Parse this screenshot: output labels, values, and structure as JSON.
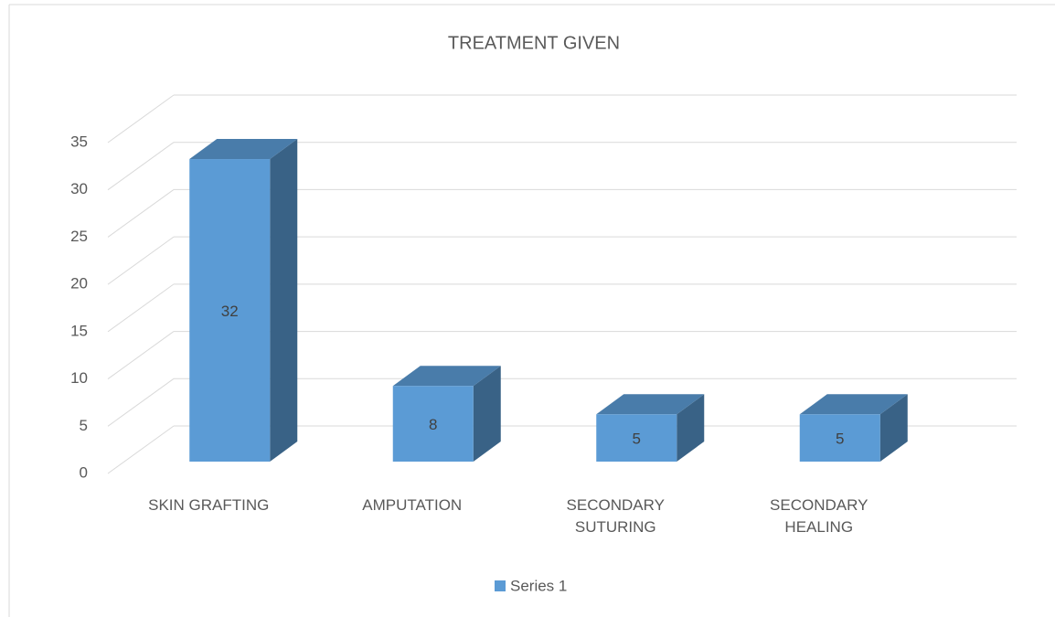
{
  "chart_data": {
    "type": "bar",
    "title": "TREATMENT GIVEN",
    "categories": [
      "SKIN GRAFTING",
      "AMPUTATION",
      "SECONDARY SUTURING",
      "SECONDARY HEALING"
    ],
    "series": [
      {
        "name": "Series 1",
        "color": "#5b9bd5",
        "values": [
          32,
          8,
          5,
          5
        ]
      }
    ],
    "ylim": [
      0,
      35
    ],
    "yticks": [
      0,
      5,
      10,
      15,
      20,
      25,
      30,
      35
    ],
    "grid": true,
    "legend": "bottom",
    "three_d": true
  }
}
